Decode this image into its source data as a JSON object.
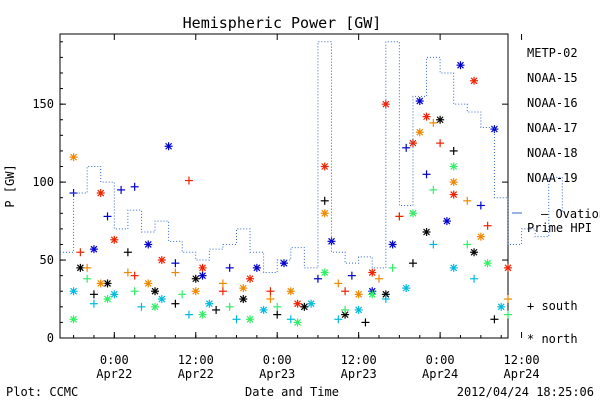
{
  "chart_data": {
    "type": "scatter",
    "title": "Hemispheric Power [GW]",
    "ylabel": "P [GW]",
    "xlabel": "Date and Time",
    "ylim": [
      0,
      195
    ],
    "xlim_hours": [
      -8,
      58
    ],
    "y_ticks": [
      0,
      50,
      100,
      150
    ],
    "x_ticks": [
      {
        "h": 0,
        "time": "0:00",
        "date": "Apr22"
      },
      {
        "h": 12,
        "time": "12:00",
        "date": "Apr22"
      },
      {
        "h": 24,
        "time": "0:00",
        "date": "Apr23"
      },
      {
        "h": 36,
        "time": "12:00",
        "date": "Apr23"
      },
      {
        "h": 48,
        "time": "0:00",
        "date": "Apr24"
      },
      {
        "h": 60,
        "time": "12:00",
        "date": "Apr24"
      }
    ],
    "plot_credit": "Plot: CCMC",
    "timestamp": "2012/04/24 18:25:06",
    "marker_legend": [
      {
        "symbol": "+",
        "label": "south"
      },
      {
        "symbol": "*",
        "label": "north"
      }
    ],
    "series": [
      {
        "name": "METP-02",
        "color": "#000000",
        "points": [
          {
            "x": -5,
            "y": 45,
            "m": "*"
          },
          {
            "x": -3,
            "y": 28,
            "m": "+"
          },
          {
            "x": -1,
            "y": 35,
            "m": "*"
          },
          {
            "x": 2,
            "y": 55,
            "m": "+"
          },
          {
            "x": 6,
            "y": 30,
            "m": "*"
          },
          {
            "x": 9,
            "y": 22,
            "m": "+"
          },
          {
            "x": 12,
            "y": 38,
            "m": "*"
          },
          {
            "x": 15,
            "y": 18,
            "m": "+"
          },
          {
            "x": 19,
            "y": 25,
            "m": "*"
          },
          {
            "x": 24,
            "y": 15,
            "m": "+"
          },
          {
            "x": 28,
            "y": 20,
            "m": "*"
          },
          {
            "x": 31,
            "y": 88,
            "m": "+"
          },
          {
            "x": 34,
            "y": 15,
            "m": "*"
          },
          {
            "x": 37,
            "y": 10,
            "m": "+"
          },
          {
            "x": 40,
            "y": 28,
            "m": "*"
          },
          {
            "x": 44,
            "y": 48,
            "m": "+"
          },
          {
            "x": 46,
            "y": 68,
            "m": "*"
          },
          {
            "x": 48,
            "y": 140,
            "m": "*"
          },
          {
            "x": 50,
            "y": 120,
            "m": "+"
          },
          {
            "x": 53,
            "y": 55,
            "m": "*"
          },
          {
            "x": 56,
            "y": 12,
            "m": "+"
          },
          {
            "x": 59,
            "y": 8,
            "m": "*"
          },
          {
            "x": 63,
            "y": 20,
            "m": "+"
          }
        ]
      },
      {
        "name": "NOAA-15",
        "color": "#0000cc",
        "points": [
          {
            "x": -6,
            "y": 93,
            "m": "+"
          },
          {
            "x": -3,
            "y": 57,
            "m": "*"
          },
          {
            "x": -1,
            "y": 78,
            "m": "+"
          },
          {
            "x": 1,
            "y": 95,
            "m": "+"
          },
          {
            "x": 3,
            "y": 97,
            "m": "+"
          },
          {
            "x": 5,
            "y": 60,
            "m": "*"
          },
          {
            "x": 8,
            "y": 123,
            "m": "*"
          },
          {
            "x": 9,
            "y": 48,
            "m": "+"
          },
          {
            "x": 13,
            "y": 40,
            "m": "*"
          },
          {
            "x": 17,
            "y": 45,
            "m": "+"
          },
          {
            "x": 21,
            "y": 45,
            "m": "*"
          },
          {
            "x": 25,
            "y": 48,
            "m": "*"
          },
          {
            "x": 30,
            "y": 38,
            "m": "+"
          },
          {
            "x": 32,
            "y": 62,
            "m": "*"
          },
          {
            "x": 35,
            "y": 40,
            "m": "+"
          },
          {
            "x": 38,
            "y": 30,
            "m": "*"
          },
          {
            "x": 41,
            "y": 60,
            "m": "*"
          },
          {
            "x": 43,
            "y": 122,
            "m": "+"
          },
          {
            "x": 45,
            "y": 152,
            "m": "*"
          },
          {
            "x": 46,
            "y": 105,
            "m": "+"
          },
          {
            "x": 49,
            "y": 75,
            "m": "*"
          },
          {
            "x": 51,
            "y": 175,
            "m": "*"
          },
          {
            "x": 54,
            "y": 85,
            "m": "+"
          },
          {
            "x": 56,
            "y": 134,
            "m": "*"
          },
          {
            "x": 59,
            "y": 15,
            "m": "+"
          },
          {
            "x": 62,
            "y": 10,
            "m": "*"
          }
        ]
      },
      {
        "name": "NOAA-16",
        "color": "#00bbdd",
        "points": [
          {
            "x": -6,
            "y": 30,
            "m": "*"
          },
          {
            "x": -3,
            "y": 22,
            "m": "+"
          },
          {
            "x": 0,
            "y": 28,
            "m": "*"
          },
          {
            "x": 4,
            "y": 20,
            "m": "+"
          },
          {
            "x": 7,
            "y": 25,
            "m": "*"
          },
          {
            "x": 11,
            "y": 15,
            "m": "+"
          },
          {
            "x": 14,
            "y": 22,
            "m": "*"
          },
          {
            "x": 18,
            "y": 12,
            "m": "+"
          },
          {
            "x": 22,
            "y": 18,
            "m": "*"
          },
          {
            "x": 26,
            "y": 12,
            "m": "+"
          },
          {
            "x": 29,
            "y": 22,
            "m": "*"
          },
          {
            "x": 33,
            "y": 12,
            "m": "+"
          },
          {
            "x": 36,
            "y": 18,
            "m": "*"
          },
          {
            "x": 40,
            "y": 25,
            "m": "+"
          },
          {
            "x": 43,
            "y": 32,
            "m": "*"
          },
          {
            "x": 47,
            "y": 60,
            "m": "+"
          },
          {
            "x": 50,
            "y": 45,
            "m": "*"
          },
          {
            "x": 53,
            "y": 38,
            "m": "+"
          },
          {
            "x": 57,
            "y": 20,
            "m": "*"
          },
          {
            "x": 60,
            "y": 10,
            "m": "+"
          },
          {
            "x": 63,
            "y": 5,
            "m": "*"
          }
        ]
      },
      {
        "name": "NOAA-17",
        "color": "#33ee66",
        "points": [
          {
            "x": -6,
            "y": 12,
            "m": "*"
          },
          {
            "x": -4,
            "y": 38,
            "m": "+"
          },
          {
            "x": -1,
            "y": 25,
            "m": "*"
          },
          {
            "x": 3,
            "y": 30,
            "m": "+"
          },
          {
            "x": 6,
            "y": 20,
            "m": "*"
          },
          {
            "x": 10,
            "y": 28,
            "m": "+"
          },
          {
            "x": 13,
            "y": 15,
            "m": "*"
          },
          {
            "x": 17,
            "y": 20,
            "m": "+"
          },
          {
            "x": 20,
            "y": 12,
            "m": "*"
          },
          {
            "x": 24,
            "y": 20,
            "m": "+"
          },
          {
            "x": 27,
            "y": 10,
            "m": "*"
          },
          {
            "x": 31,
            "y": 42,
            "m": "*"
          },
          {
            "x": 34,
            "y": 18,
            "m": "+"
          },
          {
            "x": 38,
            "y": 28,
            "m": "*"
          },
          {
            "x": 41,
            "y": 45,
            "m": "+"
          },
          {
            "x": 44,
            "y": 80,
            "m": "*"
          },
          {
            "x": 47,
            "y": 95,
            "m": "+"
          },
          {
            "x": 50,
            "y": 110,
            "m": "*"
          },
          {
            "x": 52,
            "y": 60,
            "m": "+"
          },
          {
            "x": 55,
            "y": 48,
            "m": "*"
          },
          {
            "x": 58,
            "y": 15,
            "m": "+"
          },
          {
            "x": 61,
            "y": 8,
            "m": "*"
          }
        ]
      },
      {
        "name": "NOAA-18",
        "color": "#ee8800",
        "points": [
          {
            "x": -6,
            "y": 116,
            "m": "*"
          },
          {
            "x": -4,
            "y": 45,
            "m": "+"
          },
          {
            "x": -2,
            "y": 35,
            "m": "*"
          },
          {
            "x": 2,
            "y": 42,
            "m": "+"
          },
          {
            "x": 5,
            "y": 35,
            "m": "*"
          },
          {
            "x": 9,
            "y": 42,
            "m": "+"
          },
          {
            "x": 12,
            "y": 30,
            "m": "*"
          },
          {
            "x": 16,
            "y": 35,
            "m": "+"
          },
          {
            "x": 19,
            "y": 32,
            "m": "*"
          },
          {
            "x": 23,
            "y": 25,
            "m": "+"
          },
          {
            "x": 26,
            "y": 30,
            "m": "*"
          },
          {
            "x": 31,
            "y": 80,
            "m": "*"
          },
          {
            "x": 33,
            "y": 35,
            "m": "+"
          },
          {
            "x": 36,
            "y": 28,
            "m": "*"
          },
          {
            "x": 39,
            "y": 38,
            "m": "+"
          },
          {
            "x": 42,
            "y": 78,
            "m": "+"
          },
          {
            "x": 45,
            "y": 132,
            "m": "*"
          },
          {
            "x": 47,
            "y": 138,
            "m": "+"
          },
          {
            "x": 50,
            "y": 100,
            "m": "*"
          },
          {
            "x": 52,
            "y": 88,
            "m": "+"
          },
          {
            "x": 54,
            "y": 65,
            "m": "*"
          },
          {
            "x": 58,
            "y": 25,
            "m": "+"
          },
          {
            "x": 62,
            "y": 15,
            "m": "*"
          }
        ]
      },
      {
        "name": "NOAA-19",
        "color": "#ee2200",
        "points": [
          {
            "x": -5,
            "y": 55,
            "m": "+"
          },
          {
            "x": -2,
            "y": 93,
            "m": "*"
          },
          {
            "x": 0,
            "y": 63,
            "m": "*"
          },
          {
            "x": 3,
            "y": 40,
            "m": "+"
          },
          {
            "x": 7,
            "y": 50,
            "m": "*"
          },
          {
            "x": 11,
            "y": 101,
            "m": "+"
          },
          {
            "x": 13,
            "y": 45,
            "m": "*"
          },
          {
            "x": 16,
            "y": 30,
            "m": "+"
          },
          {
            "x": 20,
            "y": 38,
            "m": "*"
          },
          {
            "x": 23,
            "y": 30,
            "m": "+"
          },
          {
            "x": 27,
            "y": 22,
            "m": "*"
          },
          {
            "x": 31,
            "y": 110,
            "m": "*"
          },
          {
            "x": 34,
            "y": 30,
            "m": "+"
          },
          {
            "x": 38,
            "y": 42,
            "m": "*"
          },
          {
            "x": 40,
            "y": 150,
            "m": "*"
          },
          {
            "x": 42,
            "y": 78,
            "m": "+"
          },
          {
            "x": 44,
            "y": 125,
            "m": "*"
          },
          {
            "x": 46,
            "y": 142,
            "m": "*"
          },
          {
            "x": 48,
            "y": 125,
            "m": "+"
          },
          {
            "x": 50,
            "y": 92,
            "m": "*"
          },
          {
            "x": 53,
            "y": 165,
            "m": "*"
          },
          {
            "x": 55,
            "y": 72,
            "m": "+"
          },
          {
            "x": 58,
            "y": 45,
            "m": "*"
          },
          {
            "x": 61,
            "y": 50,
            "m": "+"
          },
          {
            "x": 63,
            "y": 30,
            "m": "+"
          }
        ]
      },
      {
        "name": "— Ovation Prime HPI",
        "color": "#3366cc",
        "style": "dotted-step",
        "points": [
          {
            "x": -8,
            "y": 55
          },
          {
            "x": -6,
            "y": 93
          },
          {
            "x": -4,
            "y": 110
          },
          {
            "x": -2,
            "y": 100
          },
          {
            "x": 0,
            "y": 70
          },
          {
            "x": 2,
            "y": 82
          },
          {
            "x": 4,
            "y": 68
          },
          {
            "x": 6,
            "y": 75
          },
          {
            "x": 8,
            "y": 62
          },
          {
            "x": 10,
            "y": 55
          },
          {
            "x": 12,
            "y": 50
          },
          {
            "x": 14,
            "y": 57
          },
          {
            "x": 16,
            "y": 60
          },
          {
            "x": 18,
            "y": 70
          },
          {
            "x": 20,
            "y": 55
          },
          {
            "x": 22,
            "y": 42
          },
          {
            "x": 24,
            "y": 50
          },
          {
            "x": 26,
            "y": 58
          },
          {
            "x": 28,
            "y": 45
          },
          {
            "x": 30,
            "y": 190
          },
          {
            "x": 32,
            "y": 55
          },
          {
            "x": 34,
            "y": 48
          },
          {
            "x": 36,
            "y": 52
          },
          {
            "x": 38,
            "y": 45
          },
          {
            "x": 40,
            "y": 190
          },
          {
            "x": 42,
            "y": 85
          },
          {
            "x": 44,
            "y": 155
          },
          {
            "x": 46,
            "y": 180
          },
          {
            "x": 48,
            "y": 170
          },
          {
            "x": 50,
            "y": 150
          },
          {
            "x": 52,
            "y": 145
          },
          {
            "x": 54,
            "y": 135
          },
          {
            "x": 56,
            "y": 90
          },
          {
            "x": 58,
            "y": 60
          },
          {
            "x": 60,
            "y": 70
          },
          {
            "x": 62,
            "y": 65
          },
          {
            "x": 64,
            "y": 103
          },
          {
            "x": 66,
            "y": 80
          }
        ]
      }
    ]
  }
}
